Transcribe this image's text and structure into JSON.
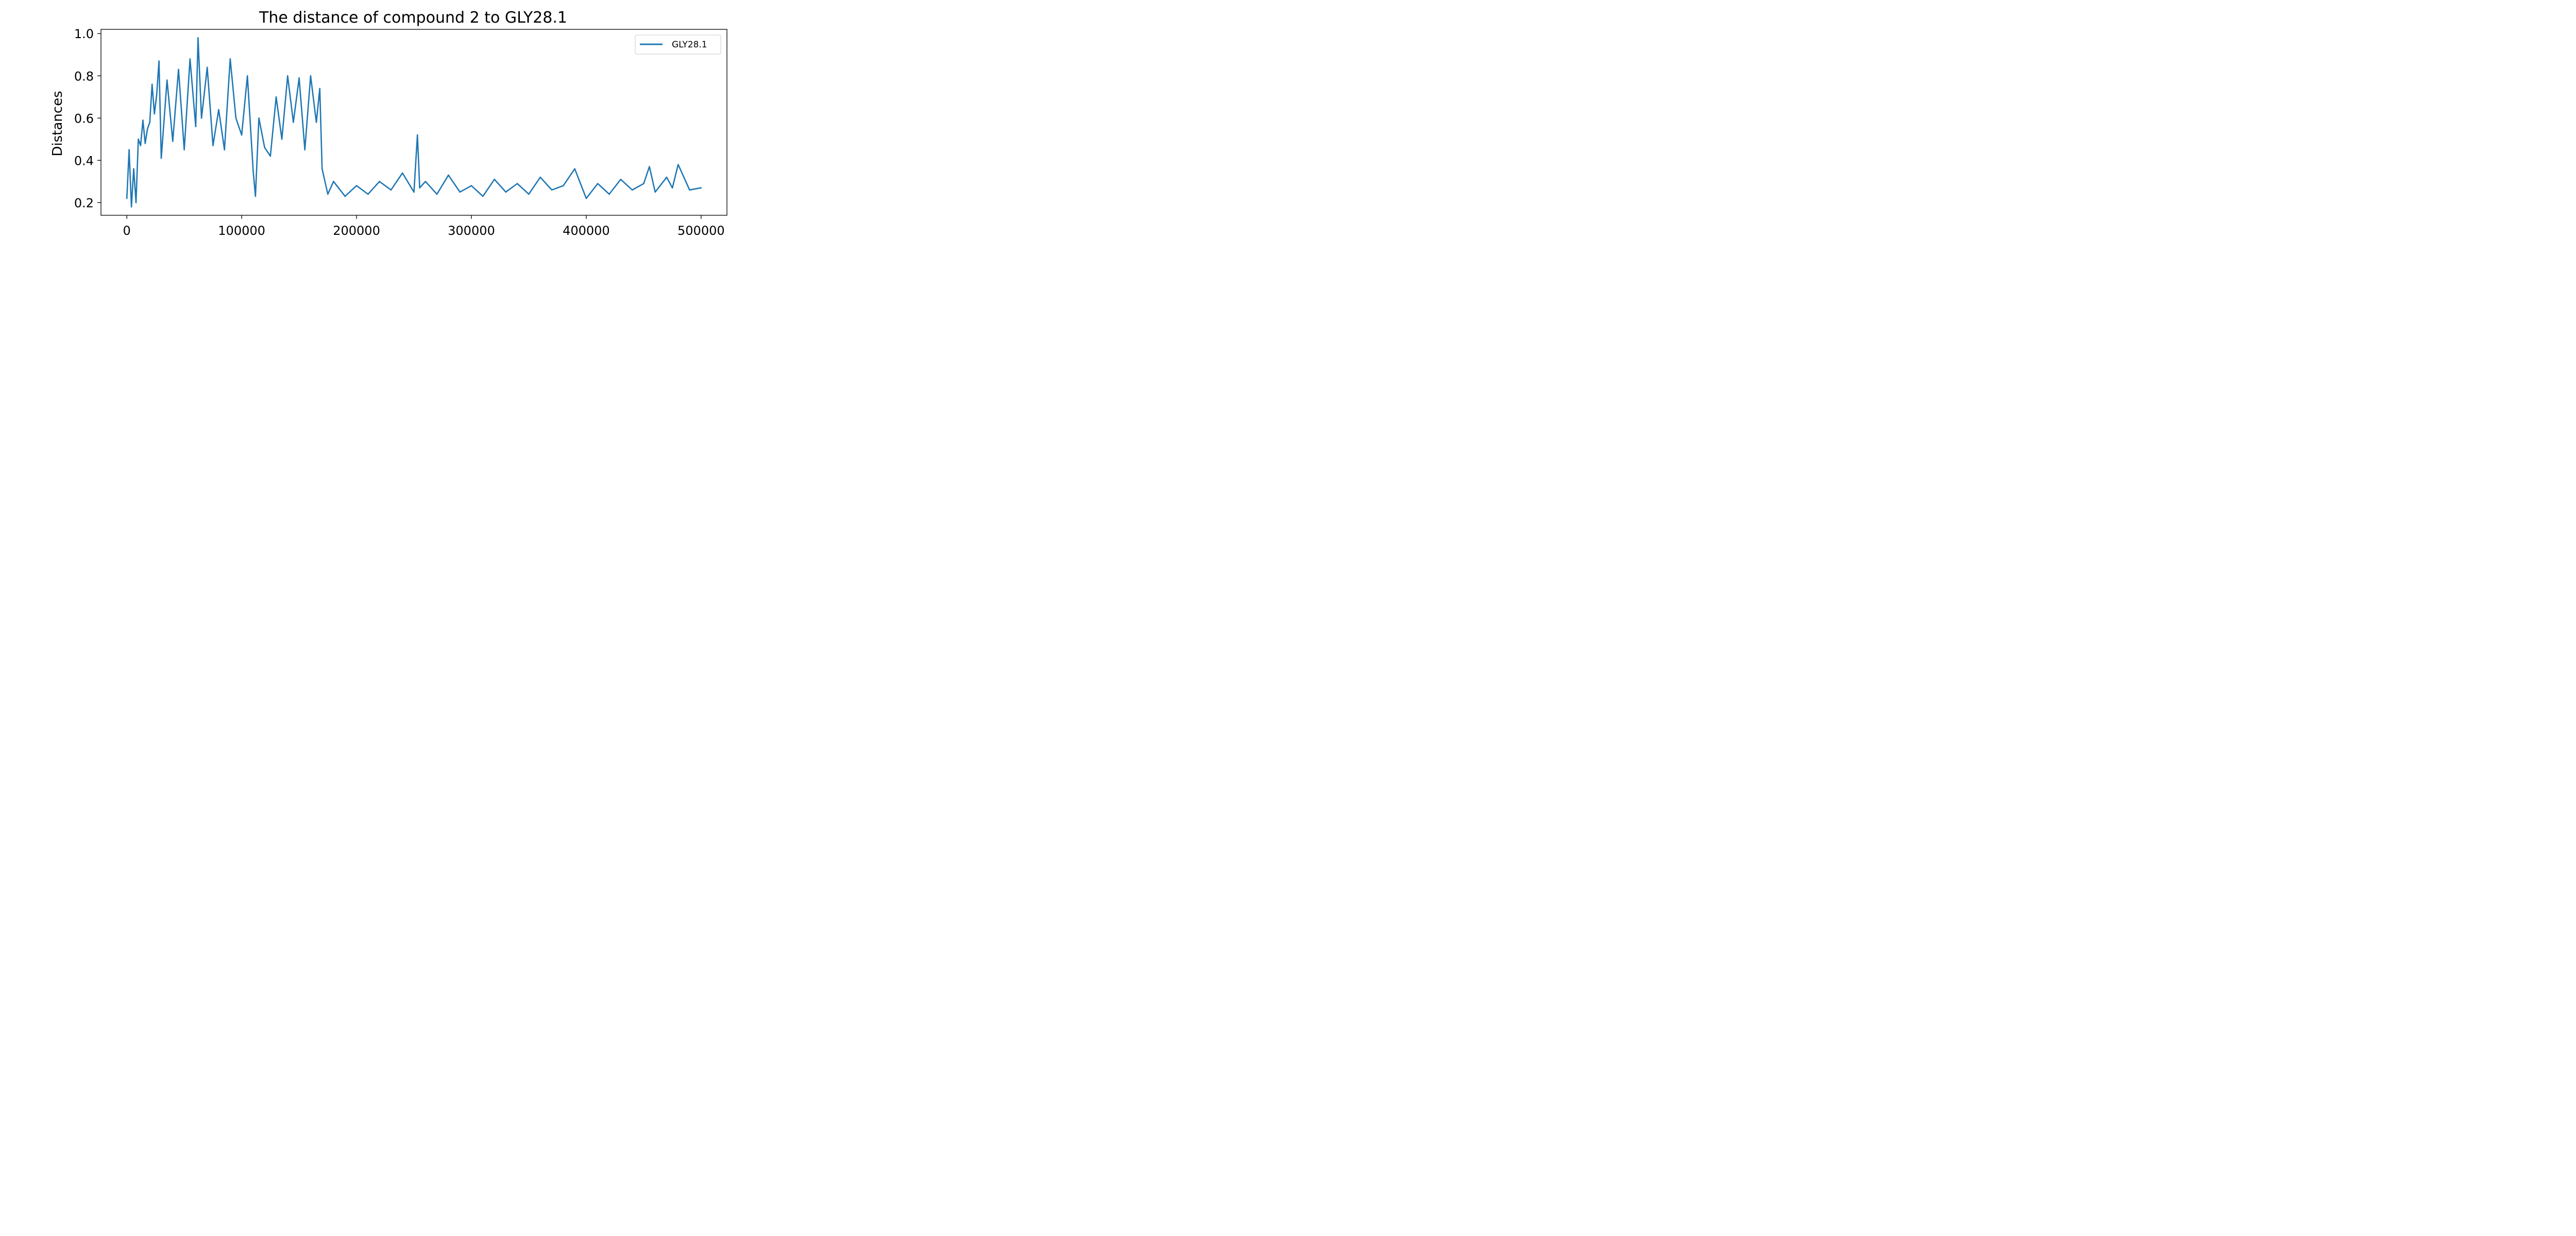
{
  "chart_data": {
    "type": "line",
    "title": "The distance of compound 2 to GLY28.1",
    "xlabel": "",
    "ylabel": "Distances",
    "xlim": [
      -22500,
      522500
    ],
    "ylim": [
      0.14,
      1.02
    ],
    "xticks": [
      0,
      100000,
      200000,
      300000,
      400000,
      500000
    ],
    "xtick_labels": [
      "0",
      "100000",
      "200000",
      "300000",
      "400000",
      "500000"
    ],
    "yticks": [
      0.2,
      0.4,
      0.6,
      0.8,
      1.0
    ],
    "ytick_labels": [
      "0.2",
      "0.4",
      "0.6",
      "0.8",
      "1.0"
    ],
    "grid": false,
    "legend": {
      "position": "top-right",
      "entries": [
        "GLY28.1"
      ]
    },
    "colors": {
      "line": "#1f77b4",
      "axes": "#000000",
      "background": "#ffffff"
    },
    "series": [
      {
        "name": "GLY28.1",
        "x": [
          0,
          2000,
          4000,
          6000,
          8000,
          10000,
          12000,
          14000,
          16000,
          18000,
          20000,
          22000,
          24000,
          26000,
          28000,
          30000,
          35000,
          40000,
          45000,
          50000,
          55000,
          60000,
          62000,
          65000,
          70000,
          75000,
          80000,
          85000,
          90000,
          95000,
          100000,
          105000,
          110000,
          112000,
          115000,
          120000,
          125000,
          130000,
          135000,
          140000,
          145000,
          150000,
          155000,
          160000,
          165000,
          168000,
          170000,
          175000,
          180000,
          190000,
          200000,
          210000,
          220000,
          230000,
          240000,
          250000,
          253000,
          255000,
          260000,
          270000,
          280000,
          290000,
          300000,
          310000,
          320000,
          330000,
          340000,
          350000,
          360000,
          370000,
          380000,
          390000,
          400000,
          410000,
          420000,
          430000,
          440000,
          450000,
          455000,
          460000,
          470000,
          475000,
          480000,
          490000,
          500000
        ],
        "y": [
          0.22,
          0.45,
          0.18,
          0.36,
          0.2,
          0.5,
          0.47,
          0.59,
          0.48,
          0.55,
          0.58,
          0.76,
          0.62,
          0.71,
          0.87,
          0.41,
          0.78,
          0.49,
          0.83,
          0.45,
          0.88,
          0.56,
          0.98,
          0.6,
          0.84,
          0.47,
          0.64,
          0.45,
          0.88,
          0.6,
          0.52,
          0.8,
          0.35,
          0.23,
          0.6,
          0.46,
          0.42,
          0.7,
          0.5,
          0.8,
          0.58,
          0.79,
          0.45,
          0.8,
          0.58,
          0.74,
          0.36,
          0.24,
          0.3,
          0.23,
          0.28,
          0.24,
          0.3,
          0.26,
          0.34,
          0.25,
          0.52,
          0.27,
          0.3,
          0.24,
          0.33,
          0.25,
          0.28,
          0.23,
          0.31,
          0.25,
          0.29,
          0.24,
          0.32,
          0.26,
          0.28,
          0.36,
          0.22,
          0.29,
          0.24,
          0.31,
          0.26,
          0.29,
          0.37,
          0.25,
          0.32,
          0.27,
          0.38,
          0.26,
          0.27
        ]
      }
    ]
  }
}
